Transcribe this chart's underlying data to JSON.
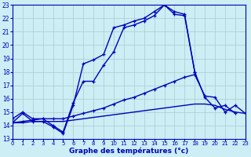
{
  "background_color": "#cceef4",
  "grid_color": "#aacccc",
  "line_color": "#0000bb",
  "xlabel": "Graphe des températures (°c)",
  "xlim": [
    0,
    23
  ],
  "ylim": [
    13,
    23
  ],
  "yticks": [
    13,
    14,
    15,
    16,
    17,
    18,
    19,
    20,
    21,
    22,
    23
  ],
  "xticks": [
    0,
    1,
    2,
    3,
    4,
    5,
    6,
    7,
    8,
    9,
    10,
    11,
    12,
    13,
    14,
    15,
    16,
    17,
    18,
    19,
    20,
    21,
    22,
    23
  ],
  "series1_x": [
    0,
    1,
    2,
    3,
    4,
    5,
    6,
    7,
    8,
    9,
    10,
    11,
    12,
    13,
    14,
    15,
    16,
    17,
    18,
    19,
    20,
    21,
    22,
    23
  ],
  "series1_y": [
    14.2,
    14.9,
    14.3,
    14.3,
    13.9,
    13.4,
    15.5,
    18.6,
    18.9,
    19.3,
    21.3,
    21.5,
    21.8,
    22.0,
    22.5,
    23.0,
    22.3,
    22.2,
    18.0,
    null,
    null,
    null,
    null,
    null
  ],
  "series1_markers": true,
  "series2_x": [
    0,
    1,
    2,
    3,
    4,
    5,
    6,
    7,
    8,
    9,
    10,
    11,
    12,
    13,
    14,
    15,
    16,
    17,
    18,
    19,
    20,
    21,
    22,
    23
  ],
  "series2_y": [
    14.5,
    15.0,
    14.5,
    14.5,
    14.0,
    13.5,
    15.7,
    17.3,
    17.3,
    18.5,
    19.5,
    21.3,
    21.5,
    21.8,
    22.2,
    23.0,
    22.5,
    22.3,
    18.0,
    16.1,
    15.3,
    15.5,
    14.9,
    null
  ],
  "series2_markers": true,
  "series3_x": [
    0,
    1,
    2,
    3,
    4,
    5,
    6,
    7,
    8,
    9,
    10,
    11,
    12,
    13,
    14,
    15,
    16,
    17,
    18,
    19,
    20,
    21,
    22,
    23
  ],
  "series3_y": [
    14.2,
    14.3,
    14.4,
    14.5,
    14.5,
    14.5,
    14.7,
    14.9,
    15.1,
    15.3,
    15.6,
    15.9,
    16.1,
    16.4,
    16.7,
    17.0,
    17.3,
    17.6,
    17.8,
    16.2,
    16.1,
    15.0,
    15.5,
    14.9
  ],
  "series3_markers": true,
  "series4_x": [
    0,
    1,
    2,
    3,
    4,
    5,
    6,
    7,
    8,
    9,
    10,
    11,
    12,
    13,
    14,
    15,
    16,
    17,
    18,
    19,
    20,
    21,
    22,
    23
  ],
  "series4_y": [
    14.2,
    14.2,
    14.3,
    14.3,
    14.3,
    14.3,
    14.4,
    14.5,
    14.6,
    14.7,
    14.8,
    14.9,
    15.0,
    15.1,
    15.2,
    15.3,
    15.4,
    15.5,
    15.6,
    15.6,
    15.5,
    15.2,
    15.0,
    14.9
  ],
  "series4_markers": false,
  "lw": 1.0,
  "ms": 3.5
}
